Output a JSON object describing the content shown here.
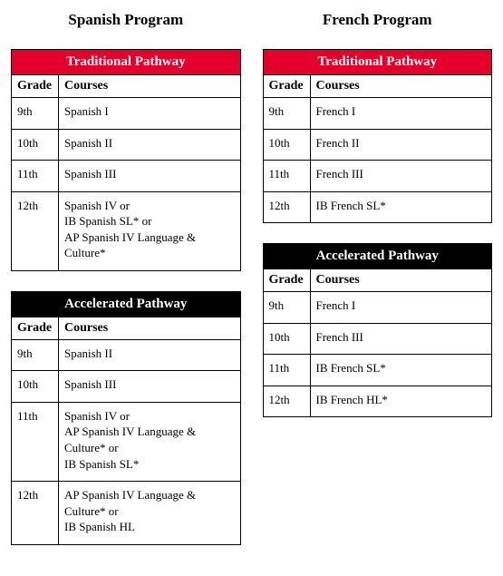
{
  "colors": {
    "header_red": "#e4002b",
    "header_black": "#000000",
    "header_text": "#ffffff",
    "border": "#000000",
    "background": "#ffffff"
  },
  "programs": [
    {
      "title": "Spanish Program",
      "pathways": [
        {
          "name": "Traditional Pathway",
          "header_bg": "#e4002b",
          "col_headers": [
            "Grade",
            "Courses"
          ],
          "rows": [
            {
              "grade": "9th",
              "courses": "Spanish I"
            },
            {
              "grade": "10th",
              "courses": "Spanish II"
            },
            {
              "grade": "11th",
              "courses": "Spanish III"
            },
            {
              "grade": "12th",
              "courses": "Spanish IV or\nIB Spanish SL* or\nAP Spanish IV Language & Culture*"
            }
          ]
        },
        {
          "name": "Accelerated Pathway",
          "header_bg": "#000000",
          "col_headers": [
            "Grade",
            "Courses"
          ],
          "rows": [
            {
              "grade": "9th",
              "courses": "Spanish II"
            },
            {
              "grade": "10th",
              "courses": "Spanish III"
            },
            {
              "grade": "11th",
              "courses": "Spanish IV or\nAP Spanish IV Language & Culture* or\nIB Spanish SL*"
            },
            {
              "grade": "12th",
              "courses": "AP Spanish IV Language & Culture* or\nIB Spanish HL"
            }
          ]
        }
      ]
    },
    {
      "title": "French Program",
      "pathways": [
        {
          "name": "Traditional Pathway",
          "header_bg": "#e4002b",
          "col_headers": [
            "Grade",
            "Courses"
          ],
          "rows": [
            {
              "grade": "9th",
              "courses": "French I"
            },
            {
              "grade": "10th",
              "courses": "French II"
            },
            {
              "grade": "11th",
              "courses": "French III"
            },
            {
              "grade": "12th",
              "courses": "IB French SL*"
            }
          ]
        },
        {
          "name": "Accelerated Pathway",
          "header_bg": "#000000",
          "col_headers": [
            "Grade",
            "Courses"
          ],
          "rows": [
            {
              "grade": "9th",
              "courses": "French I"
            },
            {
              "grade": "10th",
              "courses": "French III"
            },
            {
              "grade": "11th",
              "courses": "IB French SL*"
            },
            {
              "grade": "12th",
              "courses": "IB French HL*"
            }
          ]
        }
      ]
    }
  ]
}
